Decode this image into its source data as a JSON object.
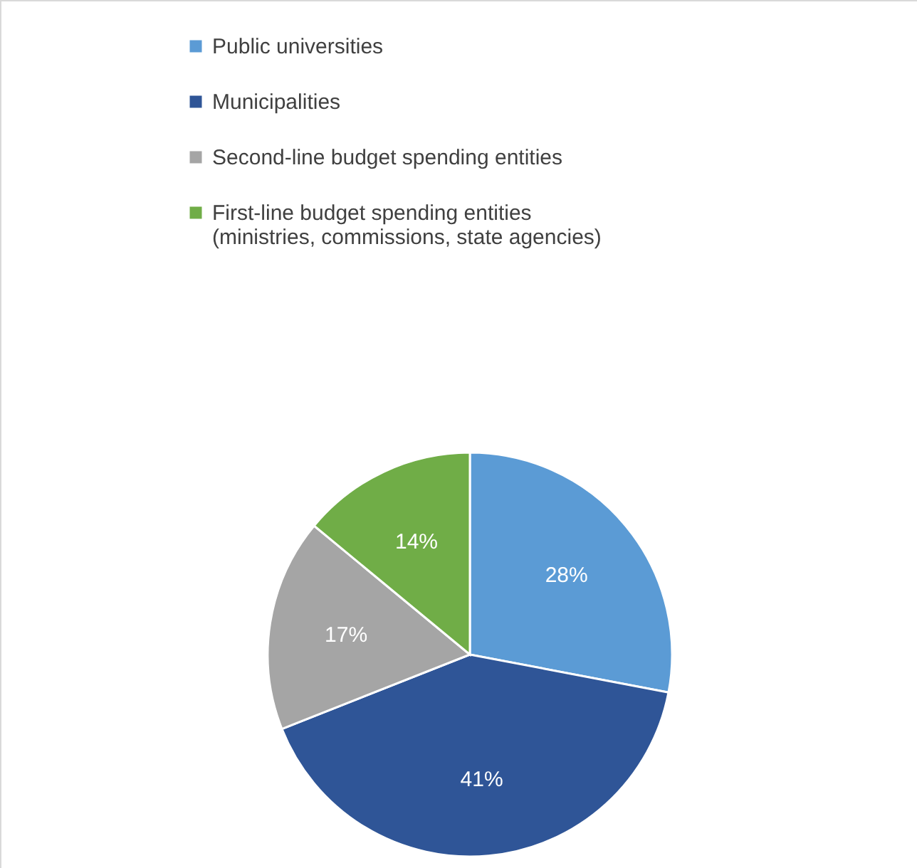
{
  "chart_data": {
    "type": "pie",
    "categories": [
      "Public universities",
      "Municipalities",
      "Second-line budget spending entities",
      "First-line budget spending entities (ministries, commissions, state agencies)"
    ],
    "values": [
      28,
      41,
      17,
      14
    ],
    "colors": [
      "#5b9bd5",
      "#2f5597",
      "#a5a5a5",
      "#70ad47"
    ],
    "value_labels": [
      "28%",
      "41%",
      "17%",
      "14%"
    ],
    "legend": "top"
  }
}
